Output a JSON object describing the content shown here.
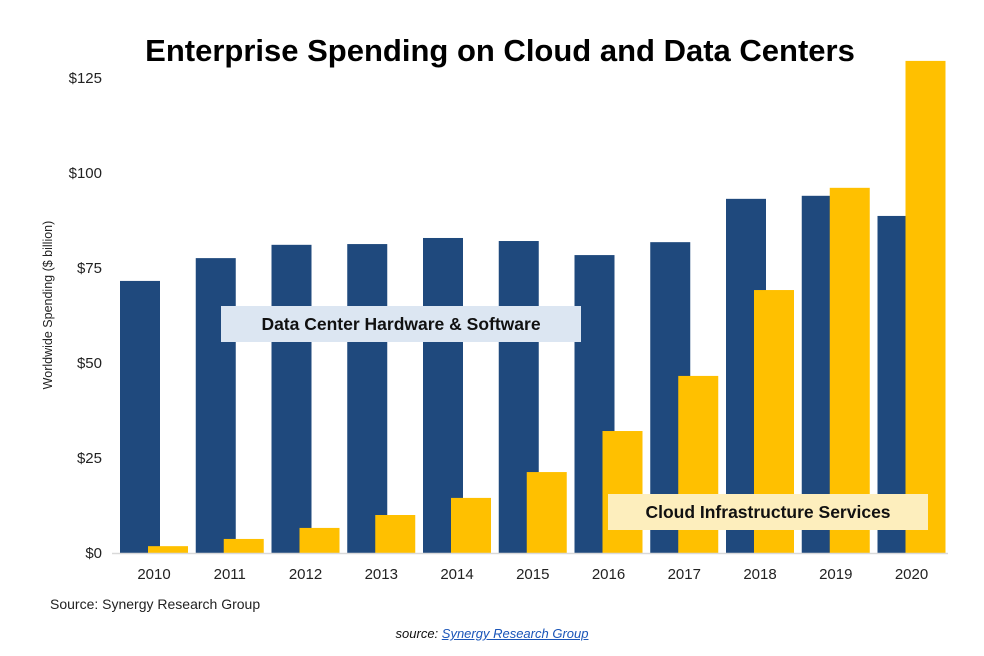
{
  "chart_data": {
    "type": "bar",
    "title": "Enterprise Spending on Cloud and Data Centers",
    "xlabel": "",
    "ylabel": "Worldwide Spending ($ billion)",
    "ylim": [
      0,
      130
    ],
    "yticks": [
      0,
      25,
      50,
      75,
      100,
      125
    ],
    "ytick_labels": [
      "$0",
      "$25",
      "$50",
      "$75",
      "$100",
      "$125"
    ],
    "grid": false,
    "categories": [
      "2010",
      "2011",
      "2012",
      "2013",
      "2014",
      "2015",
      "2016",
      "2017",
      "2018",
      "2019",
      "2020"
    ],
    "series": [
      {
        "name": "Data Center Hardware & Software",
        "color": "#1f497d",
        "values": [
          71.6,
          77.6,
          81.1,
          81.3,
          82.9,
          82.1,
          78.4,
          81.8,
          93.2,
          94.0,
          88.7
        ]
      },
      {
        "name": "Cloud Infrastructure Services",
        "color": "#ffc000",
        "values": [
          1.8,
          3.7,
          6.6,
          10.0,
          14.5,
          21.3,
          32.1,
          46.6,
          69.2,
          96.1,
          129.5
        ]
      }
    ],
    "annotations": [
      {
        "text": "Data Center Hardware & Software",
        "series": 0,
        "background": "#dce6f2"
      },
      {
        "text": "Cloud Infrastructure Services",
        "series": 1,
        "background": "#fdeebd"
      }
    ],
    "source_note": "Source: Synergy Research Group"
  },
  "caption": {
    "prefix": "source: ",
    "link_text": "Synergy Research Group"
  }
}
